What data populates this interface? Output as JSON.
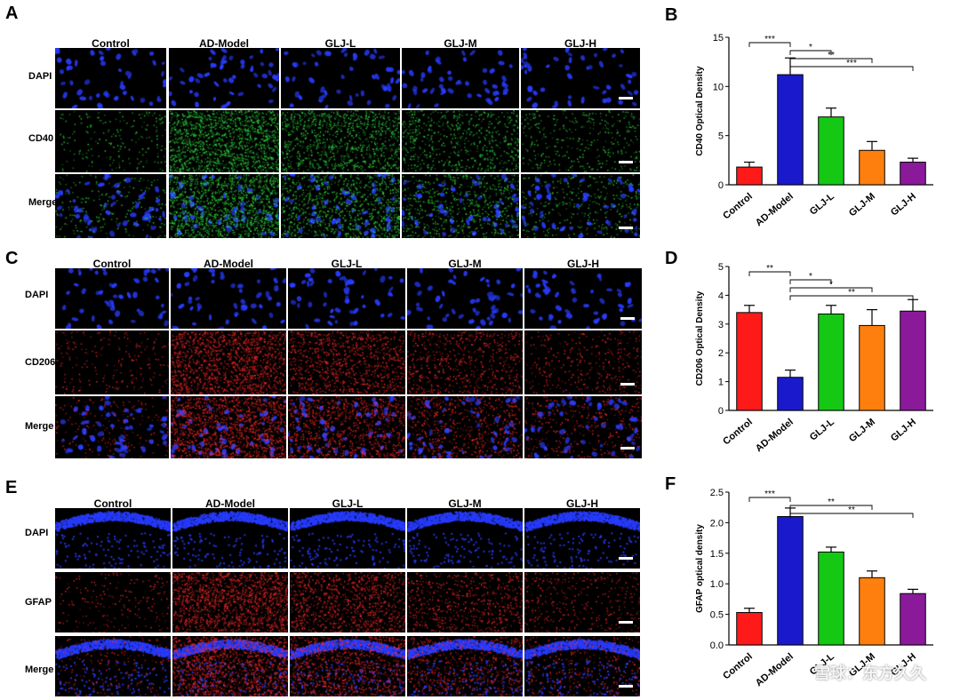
{
  "panels": {
    "A": {
      "letter": "A",
      "columns": [
        "Control",
        "AD-Model",
        "GLJ-L",
        "GLJ-M",
        "GLJ-H"
      ],
      "rows": [
        "DAPI",
        "CD40",
        "Merge"
      ]
    },
    "C": {
      "letter": "C",
      "columns": [
        "Control",
        "AD-Model",
        "GLJ-L",
        "GLJ-M",
        "GLJ-H"
      ],
      "rows": [
        "DAPI",
        "CD206",
        "Merge"
      ]
    },
    "E": {
      "letter": "E",
      "columns": [
        "Control",
        "AD-Model",
        "GLJ-L",
        "GLJ-M",
        "GLJ-H"
      ],
      "rows": [
        "DAPI",
        "GFAP",
        "Merge"
      ]
    },
    "B": {
      "letter": "B"
    },
    "D": {
      "letter": "D"
    },
    "F": {
      "letter": "F"
    }
  },
  "watermark": "雪球：东方久久",
  "colors": {
    "Control": "#ff1a1a",
    "AD-Model": "#1a1acc",
    "GLJ-L": "#14c814",
    "GLJ-M": "#ff7f0e",
    "GLJ-H": "#8b1a9b",
    "dapi": "#2030ff",
    "cd40": "#30d040",
    "red_stain": "#e02020"
  },
  "chart_data": [
    {
      "type": "bar",
      "panel": "B",
      "categories": [
        "Control",
        "AD-Model",
        "GLJ-L",
        "GLJ-M",
        "GLJ-H"
      ],
      "values": [
        1.8,
        11.2,
        6.9,
        3.5,
        2.3
      ],
      "errors": [
        0.5,
        1.7,
        0.9,
        0.9,
        0.4
      ],
      "ylabel": "CD40 Optical Density",
      "ylim": [
        0,
        15
      ],
      "yticks": [
        0,
        5,
        10,
        15
      ],
      "significance": [
        {
          "from": 0,
          "to": 1,
          "label": "***"
        },
        {
          "from": 1,
          "to": 2,
          "label": "*"
        },
        {
          "from": 1,
          "to": 3,
          "label": "**"
        },
        {
          "from": 1,
          "to": 4,
          "label": "***"
        }
      ]
    },
    {
      "type": "bar",
      "panel": "D",
      "categories": [
        "Control",
        "AD-Model",
        "GLJ-L",
        "GLJ-M",
        "GLJ-H"
      ],
      "values": [
        3.4,
        1.15,
        3.35,
        2.95,
        3.45
      ],
      "errors": [
        0.25,
        0.25,
        0.3,
        0.55,
        0.4
      ],
      "ylabel": "CD206 Optical Density",
      "ylim": [
        0,
        5
      ],
      "yticks": [
        0,
        1,
        2,
        3,
        4,
        5
      ],
      "significance": [
        {
          "from": 0,
          "to": 1,
          "label": "**"
        },
        {
          "from": 1,
          "to": 2,
          "label": "*"
        },
        {
          "from": 1,
          "to": 3,
          "label": "*"
        },
        {
          "from": 1,
          "to": 4,
          "label": "**"
        }
      ]
    },
    {
      "type": "bar",
      "panel": "F",
      "categories": [
        "Control",
        "AD-Model",
        "GLJ-L",
        "GLJ-M",
        "GLJ-H"
      ],
      "values": [
        0.53,
        2.1,
        1.52,
        1.1,
        0.84
      ],
      "errors": [
        0.07,
        0.14,
        0.08,
        0.11,
        0.07
      ],
      "ylabel": "GFAP optical density",
      "ylim": [
        0,
        2.5
      ],
      "yticks": [
        0.0,
        0.5,
        1.0,
        1.5,
        2.0,
        2.5
      ],
      "significance": [
        {
          "from": 0,
          "to": 1,
          "label": "***"
        },
        {
          "from": 1,
          "to": 3,
          "label": "**"
        },
        {
          "from": 1,
          "to": 4,
          "label": "**"
        }
      ]
    }
  ]
}
